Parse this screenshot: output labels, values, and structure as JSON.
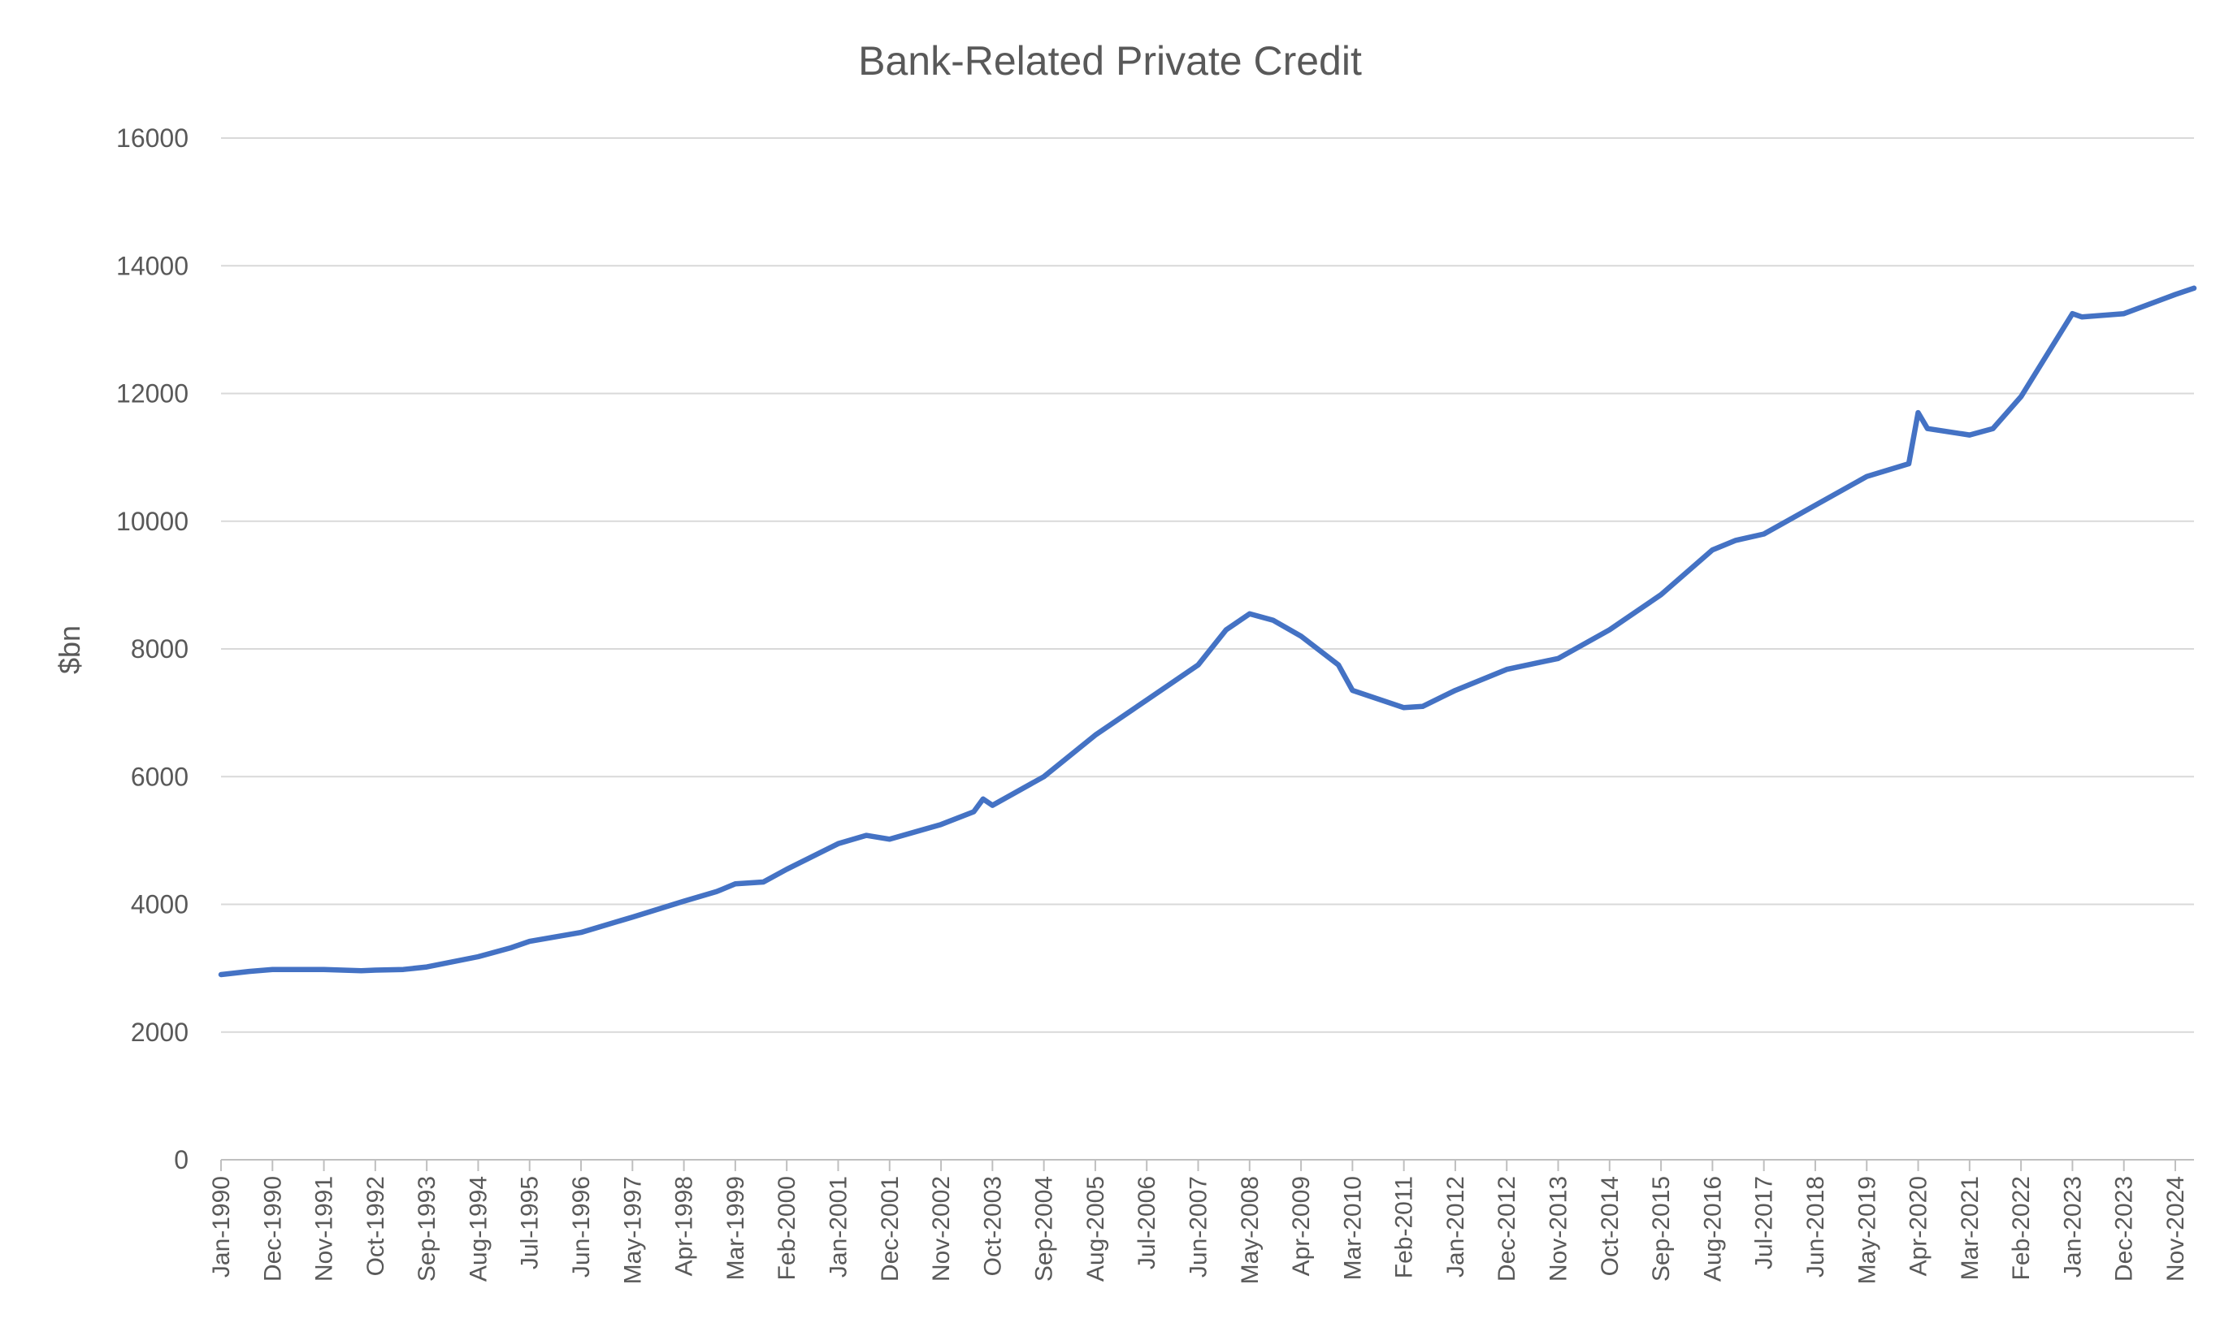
{
  "chart_data": {
    "type": "line",
    "title": "Bank-Related Private Credit",
    "xlabel": "",
    "ylabel": "$bn",
    "ylim": [
      0,
      16000
    ],
    "yticks": [
      0,
      2000,
      4000,
      6000,
      8000,
      10000,
      12000,
      14000,
      16000
    ],
    "ytick_labels": [
      "0",
      "2000",
      "4000",
      "6000",
      "8000",
      "10000",
      "12000",
      "14000",
      "16000"
    ],
    "grid": "horizontal",
    "legend": "none",
    "x_start": "Jan-1990",
    "x_end": "Mar-2025",
    "tick_labels": [
      "Jan-1990",
      "Dec-1990",
      "Nov-1991",
      "Oct-1992",
      "Sep-1993",
      "Aug-1994",
      "Jul-1995",
      "Jun-1996",
      "May-1997",
      "Apr-1998",
      "Mar-1999",
      "Feb-2000",
      "Jan-2001",
      "Dec-2001",
      "Nov-2002",
      "Oct-2003",
      "Sep-2004",
      "Aug-2005",
      "Jul-2006",
      "Jun-2007",
      "May-2008",
      "Apr-2009",
      "Mar-2010",
      "Feb-2011",
      "Jan-2012",
      "Dec-2012",
      "Nov-2013",
      "Oct-2014",
      "Sep-2015",
      "Aug-2016",
      "Jul-2017",
      "Jun-2018",
      "May-2019",
      "Apr-2020",
      "Mar-2021",
      "Feb-2022",
      "Jan-2023",
      "Dec-2023",
      "Nov-2024"
    ],
    "line_color": "#4472c4",
    "series": [
      {
        "x": [
          "Jan-1990",
          "Jul-1990",
          "Dec-1990",
          "Nov-1991",
          "Jul-1992",
          "Oct-1992",
          "Apr-1993",
          "Sep-1993",
          "Aug-1994",
          "Mar-1995",
          "Jul-1995",
          "Jun-1996",
          "May-1997",
          "Apr-1998",
          "Nov-1998",
          "Mar-1999",
          "Sep-1999",
          "Feb-2000",
          "Jan-2001",
          "Jul-2001",
          "Dec-2001",
          "Nov-2002",
          "Jun-2003",
          "Aug-2003",
          "Oct-2003",
          "Sep-2004",
          "Aug-2005",
          "Jul-2006",
          "Jun-2007",
          "Dec-2007",
          "May-2008",
          "Oct-2008",
          "Apr-2009",
          "Dec-2009",
          "Mar-2010",
          "Feb-2011",
          "Jun-2011",
          "Jan-2012",
          "Dec-2012",
          "Nov-2013",
          "Oct-2014",
          "Sep-2015",
          "Aug-2016",
          "Jan-2017",
          "Jul-2017",
          "Jun-2018",
          "May-2019",
          "Feb-2020",
          "Apr-2020",
          "Jun-2020",
          "Mar-2021",
          "Aug-2021",
          "Feb-2022",
          "Jan-2023",
          "Mar-2023",
          "Dec-2023",
          "Nov-2024",
          "Mar-2025"
        ],
        "values": [
          2900,
          2950,
          2980,
          2980,
          2960,
          2970,
          2980,
          3020,
          3180,
          3320,
          3420,
          3560,
          3800,
          4050,
          4200,
          4320,
          4350,
          4550,
          4950,
          5080,
          5020,
          5250,
          5450,
          5650,
          5550,
          6000,
          6650,
          7200,
          7750,
          8300,
          8550,
          8450,
          8200,
          7750,
          7350,
          7080,
          7100,
          7350,
          7680,
          7850,
          8300,
          8850,
          9550,
          9700,
          9800,
          10250,
          10700,
          10900,
          11700,
          11450,
          11350,
          11450,
          11950,
          13250,
          13200,
          13250,
          13550,
          13650
        ]
      }
    ]
  }
}
